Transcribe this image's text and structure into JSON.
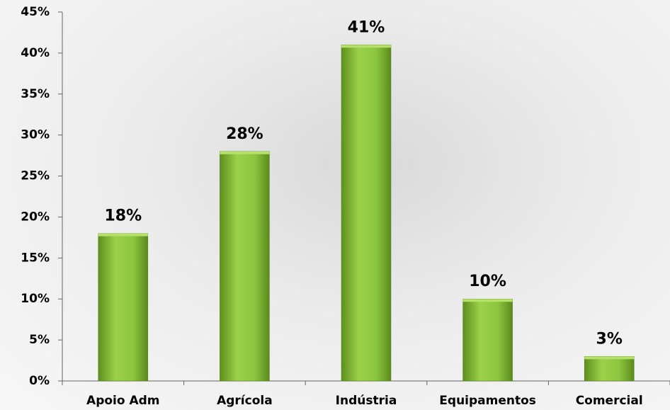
{
  "chart_data": {
    "type": "bar",
    "categories": [
      "Apoio Adm",
      "Agrícola",
      "Indústria",
      "Equipamentos",
      "Comercial"
    ],
    "values": [
      18,
      28,
      41,
      10,
      3
    ],
    "value_labels": [
      "18%",
      "28%",
      "41%",
      "10%",
      "3%"
    ],
    "color": "#8cc63f",
    "ylim": [
      0,
      45
    ],
    "yticks": [
      {
        "value": 0,
        "label": "0%"
      },
      {
        "value": 5,
        "label": "5%"
      },
      {
        "value": 10,
        "label": "10%"
      },
      {
        "value": 15,
        "label": "15%"
      },
      {
        "value": 20,
        "label": "20%"
      },
      {
        "value": 25,
        "label": "25%"
      },
      {
        "value": 30,
        "label": "30%"
      },
      {
        "value": 35,
        "label": "35%"
      },
      {
        "value": 40,
        "label": "40%"
      },
      {
        "value": 45,
        "label": "45%"
      }
    ],
    "grid": false
  }
}
